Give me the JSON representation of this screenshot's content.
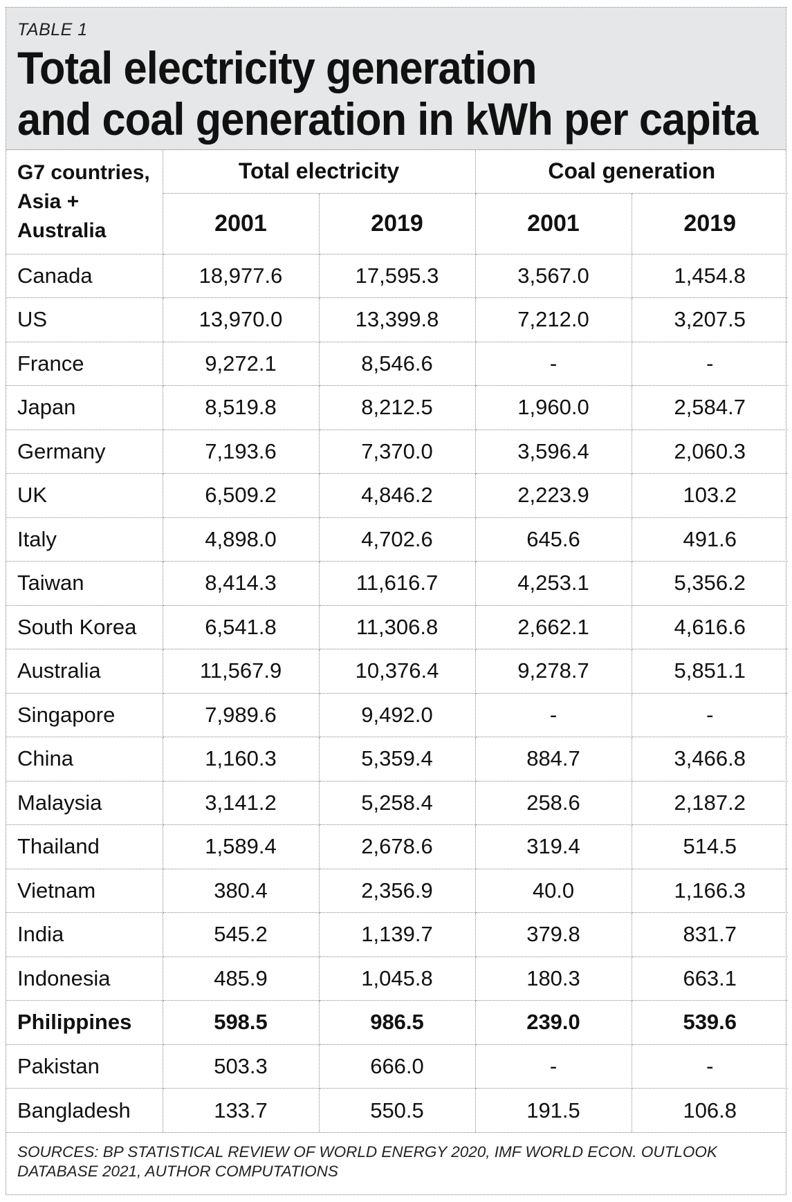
{
  "header": {
    "table_label": "TABLE 1",
    "title_line1": "Total electricity generation",
    "title_line2": "and coal generation in kWh per capita"
  },
  "columns": {
    "corner": [
      "G7 countries,",
      "Asia +",
      "Australia"
    ],
    "group_total": "Total electricity",
    "group_coal": "Coal generation",
    "years": [
      "2001",
      "2019",
      "2001",
      "2019"
    ]
  },
  "rows": [
    {
      "country": "Canada",
      "total_2001": "18,977.6",
      "total_2019": "17,595.3",
      "coal_2001": "3,567.0",
      "coal_2019": "1,454.8"
    },
    {
      "country": "US",
      "total_2001": "13,970.0",
      "total_2019": "13,399.8",
      "coal_2001": "7,212.0",
      "coal_2019": "3,207.5"
    },
    {
      "country": "France",
      "total_2001": "9,272.1",
      "total_2019": "8,546.6",
      "coal_2001": "-",
      "coal_2019": "-"
    },
    {
      "country": "Japan",
      "total_2001": "8,519.8",
      "total_2019": "8,212.5",
      "coal_2001": "1,960.0",
      "coal_2019": "2,584.7"
    },
    {
      "country": "Germany",
      "total_2001": "7,193.6",
      "total_2019": "7,370.0",
      "coal_2001": "3,596.4",
      "coal_2019": "2,060.3"
    },
    {
      "country": "UK",
      "total_2001": "6,509.2",
      "total_2019": "4,846.2",
      "coal_2001": "2,223.9",
      "coal_2019": "103.2"
    },
    {
      "country": "Italy",
      "total_2001": "4,898.0",
      "total_2019": "4,702.6",
      "coal_2001": "645.6",
      "coal_2019": "491.6"
    },
    {
      "country": "Taiwan",
      "total_2001": "8,414.3",
      "total_2019": "11,616.7",
      "coal_2001": "4,253.1",
      "coal_2019": "5,356.2"
    },
    {
      "country": "South Korea",
      "total_2001": "6,541.8",
      "total_2019": "11,306.8",
      "coal_2001": "2,662.1",
      "coal_2019": "4,616.6"
    },
    {
      "country": "Australia",
      "total_2001": "11,567.9",
      "total_2019": "10,376.4",
      "coal_2001": "9,278.7",
      "coal_2019": "5,851.1"
    },
    {
      "country": "Singapore",
      "total_2001": "7,989.6",
      "total_2019": "9,492.0",
      "coal_2001": "-",
      "coal_2019": "-"
    },
    {
      "country": "China",
      "total_2001": "1,160.3",
      "total_2019": "5,359.4",
      "coal_2001": "884.7",
      "coal_2019": "3,466.8"
    },
    {
      "country": "Malaysia",
      "total_2001": "3,141.2",
      "total_2019": "5,258.4",
      "coal_2001": "258.6",
      "coal_2019": "2,187.2"
    },
    {
      "country": "Thailand",
      "total_2001": "1,589.4",
      "total_2019": "2,678.6",
      "coal_2001": "319.4",
      "coal_2019": "514.5"
    },
    {
      "country": "Vietnam",
      "total_2001": "380.4",
      "total_2019": "2,356.9",
      "coal_2001": "40.0",
      "coal_2019": "1,166.3"
    },
    {
      "country": "India",
      "total_2001": "545.2",
      "total_2019": "1,139.7",
      "coal_2001": "379.8",
      "coal_2019": "831.7"
    },
    {
      "country": "Indonesia",
      "total_2001": "485.9",
      "total_2019": "1,045.8",
      "coal_2001": "180.3",
      "coal_2019": "663.1"
    },
    {
      "country": "Philippines",
      "total_2001": "598.5",
      "total_2019": "986.5",
      "coal_2001": "239.0",
      "coal_2019": "539.6",
      "highlight": true
    },
    {
      "country": "Pakistan",
      "total_2001": "503.3",
      "total_2019": "666.0",
      "coal_2001": "-",
      "coal_2019": "-"
    },
    {
      "country": "Bangladesh",
      "total_2001": "133.7",
      "total_2019": "550.5",
      "coal_2001": "191.5",
      "coal_2019": "106.8"
    }
  ],
  "footer": {
    "sources": "SOURCES: BP STATISTICAL REVIEW OF WORLD ENERGY 2020, IMF WORLD ECON. OUTLOOK DATABASE 2021, AUTHOR COMPUTATIONS"
  }
}
